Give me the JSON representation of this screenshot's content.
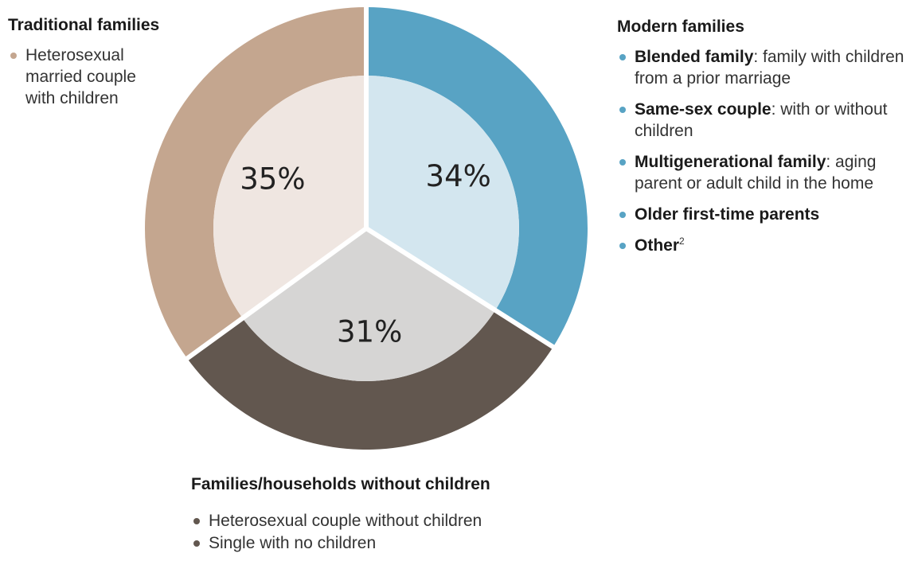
{
  "chart_data": {
    "type": "pie",
    "segments": [
      {
        "name": "Modern families",
        "value": 34,
        "label": "34%",
        "outer_color": "#58a3c4",
        "inner_color": "#d3e6ef"
      },
      {
        "name": "Families/households without children",
        "value": 31,
        "label": "31%",
        "outer_color": "#62574f",
        "inner_color": "#d6d5d4"
      },
      {
        "name": "Traditional families",
        "value": 35,
        "label": "35%",
        "outer_color": "#c4a68f",
        "inner_color": "#efe6e1"
      }
    ],
    "start_angle_deg": 0,
    "direction": "clockwise"
  },
  "traditional": {
    "title": "Traditional families",
    "items": [
      {
        "text": "Heterosexual married couple with children"
      }
    ]
  },
  "modern": {
    "title": "Modern families",
    "items": [
      {
        "bold": "Blended family",
        "rest": ": family with children from a prior marriage"
      },
      {
        "bold": "Same-sex couple",
        "rest": ": with or without children"
      },
      {
        "bold": "Multigenerational family",
        "rest": ": aging parent or adult child in the home"
      },
      {
        "bold": "Older first-time parents",
        "rest": ""
      },
      {
        "bold": "Other",
        "sup": "2",
        "rest": ""
      }
    ]
  },
  "without_children": {
    "title": "Families/households without children",
    "items": [
      {
        "text": "Heterosexual couple without children"
      },
      {
        "text": "Single with no children"
      }
    ]
  }
}
